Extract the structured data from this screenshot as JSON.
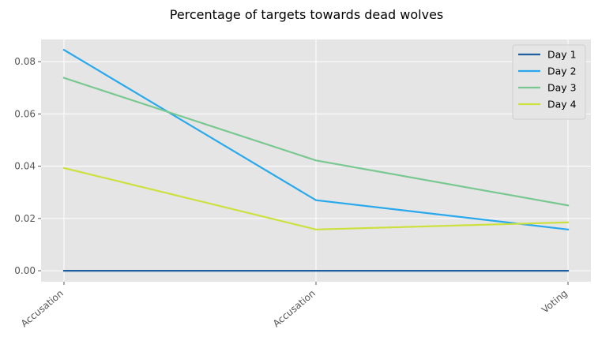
{
  "chart_data": {
    "type": "line",
    "title": "Percentage of targets towards dead wolves",
    "xlabel": "",
    "ylabel": "",
    "categories": [
      "Accusation",
      "Accusation",
      "Voting"
    ],
    "ylim": [
      -0.0042,
      0.0885
    ],
    "yticks": [
      0.0,
      0.02,
      0.04,
      0.06,
      0.08
    ],
    "ytick_labels": [
      "0.00",
      "0.02",
      "0.04",
      "0.06",
      "0.08"
    ],
    "grid": true,
    "legend_position": "top-right",
    "series": [
      {
        "name": "Day 1",
        "color": "#1f5fa0",
        "values": [
          0.0,
          0.0,
          0.0
        ]
      },
      {
        "name": "Day 2",
        "color": "#29a8ec",
        "values": [
          0.0845,
          0.027,
          0.0158
        ]
      },
      {
        "name": "Day 3",
        "color": "#79c891",
        "values": [
          0.0738,
          0.0422,
          0.025
        ]
      },
      {
        "name": "Day 4",
        "color": "#cce13f",
        "values": [
          0.0393,
          0.0158,
          0.0185
        ]
      }
    ]
  }
}
